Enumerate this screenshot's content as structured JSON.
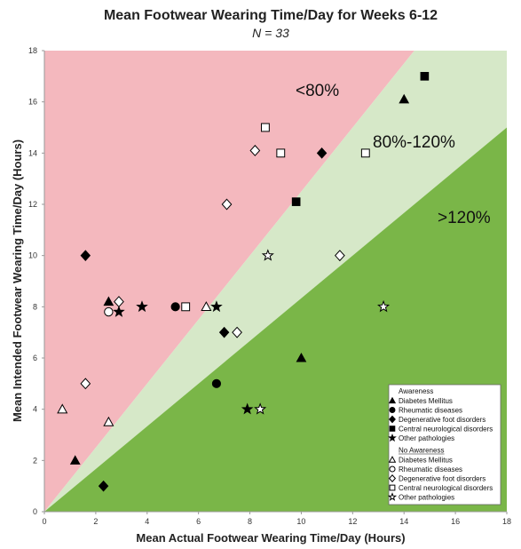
{
  "chart_data": {
    "type": "scatter",
    "title": "Mean Footwear Wearing Time/Day for Weeks 6-12",
    "subtitle": "N = 33",
    "xlabel": "Mean Actual Footwear Wearing Time/Day (Hours)",
    "ylabel": "Mean Intended Footwear Wearing Time/Day (Hours)",
    "xlim": [
      0,
      18
    ],
    "ylim": [
      0,
      18
    ],
    "xticks": [
      "0",
      "2",
      "4",
      "6",
      "8",
      "10",
      "12",
      "14",
      "16",
      "18"
    ],
    "yticks": [
      "0",
      "2",
      "4",
      "6",
      "8",
      "10",
      "12",
      "14",
      "16",
      "18"
    ],
    "grid": false,
    "regions": [
      {
        "label": "<80%",
        "description": "actual below 80% of intended",
        "color": "#f4b8be"
      },
      {
        "label": "80%-120%",
        "description": "actual between 80% and 120% of intended",
        "color": "#d6e8c8"
      },
      {
        "label": ">120%",
        "description": "actual above 120% of intended",
        "color": "#7ab648"
      }
    ],
    "legend": {
      "placement": "bottom-right",
      "groups": [
        {
          "header": "Awareness",
          "entries": [
            {
              "name": "Diabetes Mellitus",
              "marker": "triangle",
              "filled": true
            },
            {
              "name": "Rheumatic diseases",
              "marker": "circle",
              "filled": true
            },
            {
              "name": "Degenerative foot disorders",
              "marker": "diamond",
              "filled": true
            },
            {
              "name": "Central neurological disorders",
              "marker": "square",
              "filled": true
            },
            {
              "name": "Other pathologies",
              "marker": "star",
              "filled": true
            }
          ]
        },
        {
          "header": "No Awareness",
          "entries": [
            {
              "name": "Diabetes Mellitus",
              "marker": "triangle",
              "filled": false
            },
            {
              "name": "Rheumatic diseases",
              "marker": "circle",
              "filled": false
            },
            {
              "name": "Degenerative foot disorders",
              "marker": "diamond",
              "filled": false
            },
            {
              "name": "Central neurological disorders",
              "marker": "square",
              "filled": false
            },
            {
              "name": "Other pathologies",
              "marker": "star",
              "filled": false
            }
          ]
        }
      ]
    },
    "series": [
      {
        "name": "Diabetes Mellitus",
        "group": "Awareness",
        "marker": "triangle",
        "filled": true,
        "points": [
          [
            1.2,
            2.0
          ],
          [
            2.5,
            8.2
          ],
          [
            10.0,
            6.0
          ],
          [
            14.0,
            16.1
          ]
        ]
      },
      {
        "name": "Rheumatic diseases",
        "group": "Awareness",
        "marker": "circle",
        "filled": true,
        "points": [
          [
            5.1,
            8.0
          ],
          [
            6.7,
            5.0
          ]
        ]
      },
      {
        "name": "Degenerative foot disorders",
        "group": "Awareness",
        "marker": "diamond",
        "filled": true,
        "points": [
          [
            1.6,
            10.0
          ],
          [
            2.3,
            1.0
          ],
          [
            7.0,
            7.0
          ],
          [
            10.8,
            14.0
          ]
        ]
      },
      {
        "name": "Central neurological disorders",
        "group": "Awareness",
        "marker": "square",
        "filled": true,
        "points": [
          [
            9.8,
            12.1
          ],
          [
            14.8,
            17.0
          ]
        ]
      },
      {
        "name": "Other pathologies",
        "group": "Awareness",
        "marker": "star",
        "filled": true,
        "points": [
          [
            2.9,
            7.8
          ],
          [
            3.8,
            8.0
          ],
          [
            6.7,
            8.0
          ],
          [
            7.9,
            4.0
          ]
        ]
      },
      {
        "name": "Diabetes Mellitus",
        "group": "No Awareness",
        "marker": "triangle",
        "filled": false,
        "points": [
          [
            0.7,
            4.0
          ],
          [
            2.5,
            3.5
          ],
          [
            6.3,
            8.0
          ]
        ]
      },
      {
        "name": "Rheumatic diseases",
        "group": "No Awareness",
        "marker": "circle",
        "filled": false,
        "points": [
          [
            2.5,
            7.8
          ]
        ]
      },
      {
        "name": "Degenerative foot disorders",
        "group": "No Awareness",
        "marker": "diamond",
        "filled": false,
        "points": [
          [
            1.6,
            5.0
          ],
          [
            2.9,
            8.2
          ],
          [
            7.1,
            12.0
          ],
          [
            7.5,
            7.0
          ],
          [
            8.2,
            14.1
          ],
          [
            11.5,
            10.0
          ]
        ]
      },
      {
        "name": "Central neurological disorders",
        "group": "No Awareness",
        "marker": "square",
        "filled": false,
        "points": [
          [
            5.5,
            8.0
          ],
          [
            8.6,
            15.0
          ],
          [
            9.2,
            14.0
          ],
          [
            12.5,
            14.0
          ]
        ]
      },
      {
        "name": "Other pathologies",
        "group": "No Awareness",
        "marker": "star",
        "filled": false,
        "points": [
          [
            8.4,
            4.0
          ],
          [
            8.7,
            10.0
          ],
          [
            13.2,
            8.0
          ]
        ]
      }
    ]
  }
}
